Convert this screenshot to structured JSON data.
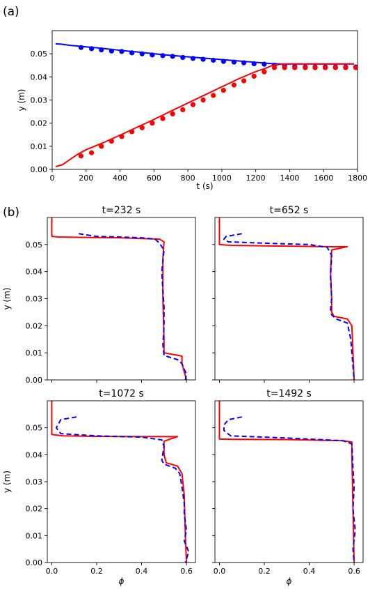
{
  "figure": {
    "panel_a_label": "(a)",
    "panel_b_label": "(b)"
  },
  "chart_data": [
    {
      "type": "line",
      "panel": "(a)",
      "title": "",
      "xlabel": "t (s)",
      "ylabel": "y (m)",
      "xlim": [
        0,
        1800
      ],
      "ylim": [
        0,
        0.06
      ],
      "xticks": [
        0,
        200,
        400,
        600,
        800,
        1000,
        1200,
        1400,
        1600,
        1800
      ],
      "yticks": [
        0.0,
        0.01,
        0.02,
        0.03,
        0.04,
        0.05
      ],
      "ytick_labels": [
        "0.00",
        "0.01",
        "0.02",
        "0.03",
        "0.04",
        "0.05"
      ],
      "grid": false,
      "series": [
        {
          "kind": "line",
          "color": "#0000ff",
          "x": [
            20,
            50,
            100,
            200,
            300,
            400,
            500,
            600,
            700,
            800,
            900,
            1000,
            1100,
            1200,
            1250,
            1300,
            1350,
            1400,
            1500,
            1600,
            1700,
            1780
          ],
          "y": [
            0.0543,
            0.0542,
            0.0537,
            0.053,
            0.0523,
            0.0515,
            0.0508,
            0.05,
            0.0493,
            0.0487,
            0.0481,
            0.0475,
            0.0469,
            0.0463,
            0.046,
            0.0457,
            0.0456,
            0.0456,
            0.0456,
            0.0456,
            0.0456,
            0.0456
          ]
        },
        {
          "kind": "scatter",
          "color": "#0000ff",
          "x": [
            170,
            232,
            290,
            350,
            410,
            470,
            530,
            590,
            652,
            710,
            770,
            830,
            890,
            950,
            1010,
            1072,
            1130,
            1190,
            1250,
            1310,
            1370,
            1430,
            1492,
            1550,
            1610,
            1670,
            1730,
            1790
          ],
          "y": [
            0.0527,
            0.0522,
            0.0517,
            0.0512,
            0.051,
            0.0504,
            0.05,
            0.0495,
            0.0492,
            0.0489,
            0.0484,
            0.048,
            0.0476,
            0.0472,
            0.0467,
            0.0464,
            0.0461,
            0.0457,
            0.0455,
            0.0451,
            0.0447,
            0.0445,
            0.0443,
            0.0443,
            0.0443,
            0.0443,
            0.0443,
            0.0443
          ]
        },
        {
          "kind": "line",
          "color": "#ff0000",
          "x": [
            20,
            60,
            100,
            150,
            200,
            300,
            400,
            500,
            600,
            700,
            800,
            900,
            1000,
            1100,
            1200,
            1250,
            1300,
            1350,
            1400,
            1500,
            1600,
            1700,
            1780
          ],
          "y": [
            0.0012,
            0.002,
            0.004,
            0.0065,
            0.0085,
            0.0115,
            0.0148,
            0.0182,
            0.0216,
            0.0252,
            0.0287,
            0.0322,
            0.0357,
            0.0392,
            0.0423,
            0.0435,
            0.045,
            0.0455,
            0.0456,
            0.0456,
            0.0456,
            0.0456,
            0.0456
          ]
        },
        {
          "kind": "scatter",
          "color": "#ff0000",
          "x": [
            170,
            232,
            290,
            350,
            410,
            470,
            530,
            590,
            652,
            710,
            770,
            830,
            890,
            950,
            1010,
            1072,
            1130,
            1190,
            1250,
            1310,
            1370,
            1430,
            1492,
            1550,
            1610,
            1670,
            1730,
            1790
          ],
          "y": [
            0.0058,
            0.0072,
            0.01,
            0.0122,
            0.0142,
            0.0163,
            0.018,
            0.02,
            0.022,
            0.024,
            0.0258,
            0.028,
            0.03,
            0.032,
            0.0342,
            0.0365,
            0.0383,
            0.0403,
            0.0422,
            0.044,
            0.044,
            0.044,
            0.044,
            0.044,
            0.044,
            0.044,
            0.044,
            0.044
          ]
        }
      ]
    },
    {
      "type": "line",
      "panel": "(b)",
      "title": "t=232 s",
      "xlabel": "",
      "ylabel": "y (m)",
      "xlim": [
        -0.02,
        0.64
      ],
      "ylim": [
        0,
        0.06
      ],
      "xticks": [],
      "xtick_labels": [],
      "yticks": [
        0.0,
        0.01,
        0.02,
        0.03,
        0.04,
        0.05
      ],
      "ytick_labels": [
        "0.00",
        "0.01",
        "0.02",
        "0.03",
        "0.04",
        "0.05"
      ],
      "series": [
        {
          "kind": "solid",
          "color": "#ff0000",
          "x": [
            0.0,
            0.0,
            0.03,
            0.1,
            0.3,
            0.48,
            0.5,
            0.495,
            0.495,
            0.5,
            0.5,
            0.58,
            0.58,
            0.59,
            0.6
          ],
          "y": [
            0.06,
            0.053,
            0.0528,
            0.0527,
            0.0525,
            0.052,
            0.051,
            0.045,
            0.03,
            0.015,
            0.01,
            0.0088,
            0.006,
            0.003,
            0.0
          ]
        },
        {
          "kind": "dashed",
          "color": "#0000ff",
          "x": [
            0.12,
            0.2,
            0.3,
            0.4,
            0.46,
            0.48,
            0.5,
            0.49,
            0.495,
            0.5,
            0.5,
            0.495,
            0.5,
            0.52,
            0.56,
            0.58,
            0.59,
            0.6,
            0.595
          ],
          "y": [
            0.054,
            0.053,
            0.0528,
            0.0525,
            0.052,
            0.0505,
            0.048,
            0.04,
            0.033,
            0.027,
            0.02,
            0.013,
            0.009,
            0.0085,
            0.0075,
            0.006,
            0.004,
            0.002,
            0.0
          ]
        }
      ]
    },
    {
      "type": "line",
      "panel": "(b)",
      "title": "t=652 s",
      "xlabel": "",
      "ylabel": "",
      "xlim": [
        -0.02,
        0.64
      ],
      "ylim": [
        0,
        0.06
      ],
      "xticks": [],
      "xtick_labels": [],
      "yticks": [],
      "ytick_labels": [],
      "series": [
        {
          "kind": "solid",
          "color": "#ff0000",
          "x": [
            0.0,
            0.0,
            0.05,
            0.2,
            0.4,
            0.5,
            0.57,
            0.5,
            0.495,
            0.5,
            0.5,
            0.51,
            0.57,
            0.59,
            0.595,
            0.6
          ],
          "y": [
            0.06,
            0.05,
            0.0497,
            0.0495,
            0.0493,
            0.0492,
            0.0492,
            0.048,
            0.04,
            0.03,
            0.025,
            0.0235,
            0.0225,
            0.02,
            0.01,
            0.0
          ]
        },
        {
          "kind": "dashed",
          "color": "#0000ff",
          "x": [
            0.1,
            0.03,
            0.02,
            0.04,
            0.2,
            0.4,
            0.48,
            0.5,
            0.495,
            0.5,
            0.495,
            0.5,
            0.52,
            0.57,
            0.585,
            0.59,
            0.595,
            0.6
          ],
          "y": [
            0.054,
            0.053,
            0.052,
            0.051,
            0.0505,
            0.05,
            0.049,
            0.046,
            0.038,
            0.03,
            0.026,
            0.024,
            0.0225,
            0.021,
            0.015,
            0.01,
            0.005,
            0.0
          ]
        }
      ]
    },
    {
      "type": "line",
      "panel": "(b)",
      "title": "t=1072 s",
      "xlabel": "ϕ",
      "ylabel": "y (m)",
      "xlim": [
        -0.02,
        0.64
      ],
      "ylim": [
        0,
        0.06
      ],
      "xticks": [
        0.0,
        0.2,
        0.4,
        0.6
      ],
      "xtick_labels": [
        "0.0",
        "0.2",
        "0.4",
        "0.6"
      ],
      "yticks": [
        0.0,
        0.01,
        0.02,
        0.03,
        0.04,
        0.05
      ],
      "ytick_labels": [
        "0.00",
        "0.01",
        "0.02",
        "0.03",
        "0.04",
        "0.05"
      ],
      "series": [
        {
          "kind": "solid",
          "color": "#ff0000",
          "x": [
            0.0,
            0.0,
            0.05,
            0.2,
            0.4,
            0.5,
            0.56,
            0.5,
            0.5,
            0.51,
            0.56,
            0.58,
            0.59,
            0.595,
            0.6
          ],
          "y": [
            0.06,
            0.0475,
            0.047,
            0.0468,
            0.0467,
            0.0467,
            0.0467,
            0.045,
            0.04,
            0.037,
            0.0358,
            0.033,
            0.025,
            0.01,
            0.0
          ]
        },
        {
          "kind": "dashed",
          "color": "#0000ff",
          "x": [
            0.11,
            0.04,
            0.02,
            0.04,
            0.2,
            0.4,
            0.49,
            0.5,
            0.49,
            0.5,
            0.55,
            0.57,
            0.58,
            0.59,
            0.59,
            0.6,
            0.59,
            0.61,
            0.595
          ],
          "y": [
            0.054,
            0.053,
            0.05,
            0.0478,
            0.047,
            0.0465,
            0.0455,
            0.043,
            0.038,
            0.0365,
            0.035,
            0.033,
            0.028,
            0.022,
            0.018,
            0.012,
            0.008,
            0.004,
            0.0
          ]
        }
      ]
    },
    {
      "type": "line",
      "panel": "(b)",
      "title": "t=1492 s",
      "xlabel": "ϕ",
      "ylabel": "",
      "xlim": [
        -0.02,
        0.64
      ],
      "ylim": [
        0,
        0.06
      ],
      "xticks": [
        0.0,
        0.2,
        0.4,
        0.6
      ],
      "xtick_labels": [
        "0.0",
        "0.2",
        "0.4",
        "0.6"
      ],
      "yticks": [],
      "ytick_labels": [],
      "series": [
        {
          "kind": "solid",
          "color": "#ff0000",
          "x": [
            0.0,
            0.0,
            0.05,
            0.3,
            0.55,
            0.59,
            0.59,
            0.595,
            0.6
          ],
          "y": [
            0.06,
            0.0458,
            0.0457,
            0.0456,
            0.0452,
            0.0447,
            0.04,
            0.02,
            0.0
          ]
        },
        {
          "kind": "dashed",
          "color": "#0000ff",
          "x": [
            0.1,
            0.04,
            0.02,
            0.02,
            0.05,
            0.3,
            0.55,
            0.59,
            0.595,
            0.6,
            0.595,
            0.605,
            0.595,
            0.6
          ],
          "y": [
            0.054,
            0.053,
            0.051,
            0.049,
            0.047,
            0.0462,
            0.0452,
            0.044,
            0.035,
            0.028,
            0.02,
            0.012,
            0.005,
            0.0
          ]
        }
      ]
    }
  ]
}
